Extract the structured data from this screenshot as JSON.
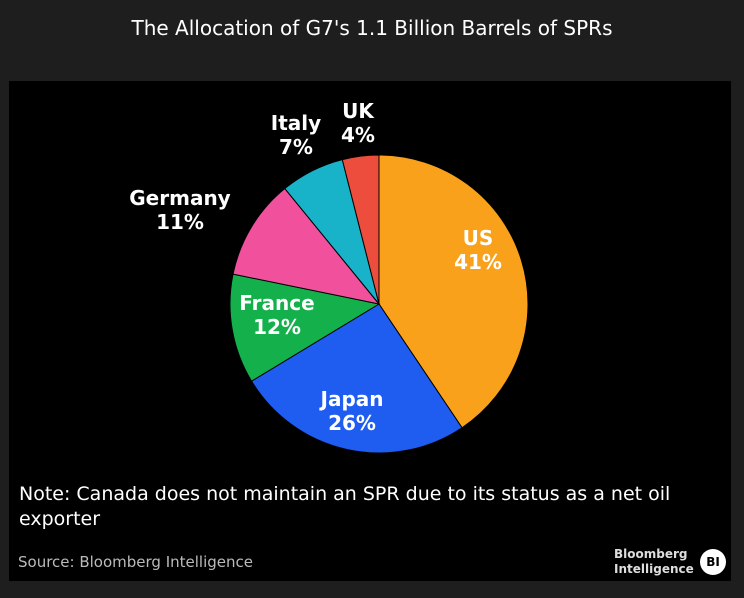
{
  "title": "The Allocation of G7's 1.1 Billion Barrels of SPRs",
  "chart_data": {
    "type": "pie",
    "title": "The Allocation of G7's 1.1 Billion Barrels of SPRs",
    "slices": [
      {
        "label": "US",
        "value": 41,
        "text": "41%",
        "color": "#f9a11b",
        "labelColor": "#ffffff"
      },
      {
        "label": "Japan",
        "value": 26,
        "text": "26%",
        "color": "#1f5cf0",
        "labelColor": "#ffffff"
      },
      {
        "label": "France",
        "value": 12,
        "text": "12%",
        "color": "#13b04b",
        "labelColor": "#ffffff"
      },
      {
        "label": "Germany",
        "value": 11,
        "text": "11%",
        "color": "#f0509c",
        "labelColor": "#ffffff"
      },
      {
        "label": "Italy",
        "value": 7,
        "text": "7%",
        "color": "#19b3c9",
        "labelColor": "#ffffff"
      },
      {
        "label": "UK",
        "value": 4,
        "text": "4%",
        "color": "#ec4d3c",
        "labelColor": "#ffffff"
      }
    ]
  },
  "note": "Note: Canada does not maintain an SPR due to its status as a net oil exporter",
  "source": "Source: Bloomberg Intelligence",
  "logo": {
    "line1": "Bloomberg",
    "line2": "Intelligence",
    "badge": "BI"
  }
}
